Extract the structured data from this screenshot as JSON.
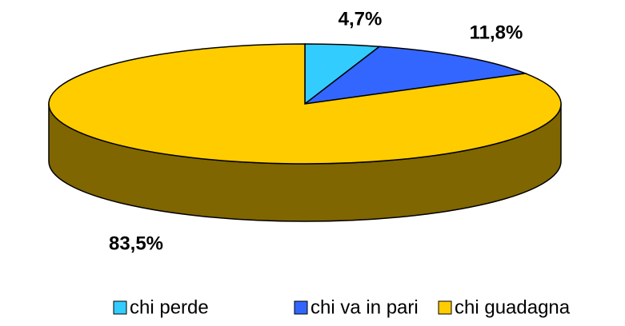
{
  "chart_data": {
    "type": "pie",
    "categories": [
      "chi perde",
      "chi va in pari",
      "chi guadagna"
    ],
    "values": [
      4.7,
      11.8,
      83.5
    ],
    "value_labels": [
      "4,7%",
      "11,8%",
      "83,5%"
    ],
    "colors": [
      "#33ccff",
      "#3366ff",
      "#ffcc00"
    ],
    "legend": "bottom"
  }
}
